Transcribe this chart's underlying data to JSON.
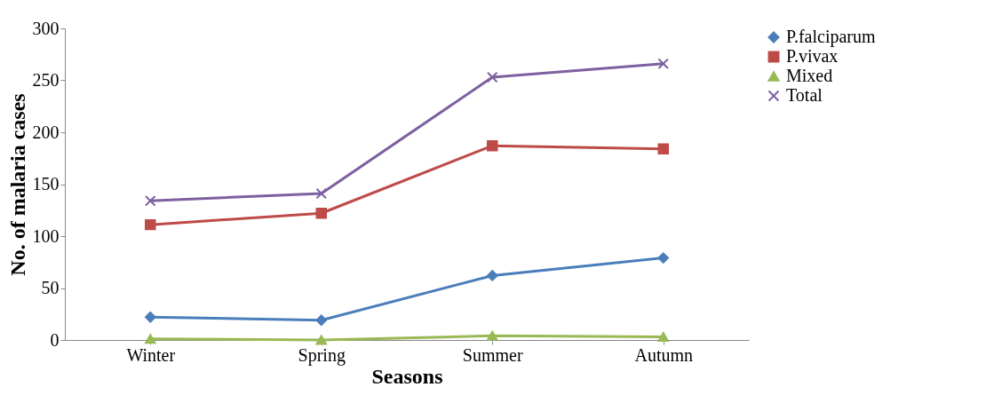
{
  "chart_data": {
    "type": "line",
    "xlabel": "Seasons",
    "ylabel": "No. of malaria cases",
    "categories": [
      "Winter",
      "Spring",
      "Summer",
      "Autumn"
    ],
    "series": [
      {
        "name": "P.falciparum",
        "color": "#4a7ebb",
        "marker": "diamond",
        "values": [
          22,
          19,
          62,
          79
        ]
      },
      {
        "name": "P.vivax",
        "color": "#be4b48",
        "marker": "square",
        "values": [
          111,
          122,
          187,
          184
        ]
      },
      {
        "name": "Mixed",
        "color": "#98b954",
        "marker": "triangle",
        "values": [
          1,
          0,
          4,
          3
        ]
      },
      {
        "name": "Total",
        "color": "#7d60a0",
        "marker": "cross",
        "values": [
          134,
          141,
          253,
          266
        ]
      }
    ],
    "ylim": [
      0,
      300
    ],
    "yticks": [
      0,
      50,
      100,
      150,
      200,
      250,
      300
    ],
    "grid": false,
    "legend": "right"
  }
}
